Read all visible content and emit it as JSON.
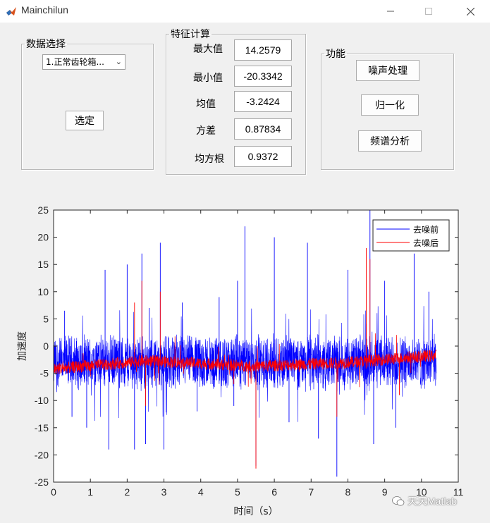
{
  "window": {
    "title": "Mainchilun"
  },
  "data_panel": {
    "legend": "数据选择",
    "select_value": "1.正常齿轮箱...",
    "select_button": "选定"
  },
  "feature_panel": {
    "legend": "特征计算",
    "rows": [
      {
        "label": "最大值",
        "value": "14.2579"
      },
      {
        "label": "最小值",
        "value": "-20.3342"
      },
      {
        "label": "均值",
        "value": "-3.2424"
      },
      {
        "label": "方差",
        "value": "0.87834"
      },
      {
        "label": "均方根",
        "value": "0.9372"
      }
    ]
  },
  "function_panel": {
    "legend": "功能",
    "buttons": [
      "噪声处理",
      "归一化",
      "频谱分析"
    ]
  },
  "chart_data": {
    "type": "line",
    "xlabel": "时间（s）",
    "ylabel": "加速度",
    "xlim": [
      0,
      11
    ],
    "ylim": [
      -25,
      25
    ],
    "xticks": [
      "0",
      "1",
      "2",
      "3",
      "4",
      "5",
      "6",
      "7",
      "8",
      "9",
      "10",
      "11"
    ],
    "yticks": [
      "25",
      "20",
      "15",
      "10",
      "5",
      "0",
      "-5",
      "-10",
      "-15",
      "-20",
      "-25"
    ],
    "legend_position": "top-right",
    "series": [
      {
        "name": "去噪前",
        "color": "#0000ff",
        "x_range": [
          0,
          10.4
        ],
        "baseline_mean": -3.2,
        "band": [
          -8,
          2
        ],
        "spikes": [
          [
            0.3,
            6.5
          ],
          [
            0.5,
            -13
          ],
          [
            0.9,
            -15
          ],
          [
            1.4,
            14
          ],
          [
            1.5,
            -19
          ],
          [
            2.0,
            15
          ],
          [
            2.2,
            -19
          ],
          [
            2.4,
            17
          ],
          [
            2.5,
            -18
          ],
          [
            2.6,
            7
          ],
          [
            2.9,
            19
          ],
          [
            3.0,
            -19
          ],
          [
            3.5,
            8
          ],
          [
            3.9,
            -12
          ],
          [
            4.5,
            9
          ],
          [
            4.9,
            -11
          ],
          [
            5.0,
            12
          ],
          [
            5.2,
            22
          ],
          [
            5.5,
            -22
          ],
          [
            6.0,
            20
          ],
          [
            6.4,
            -14
          ],
          [
            6.9,
            19
          ],
          [
            7.2,
            -17
          ],
          [
            7.7,
            -24
          ],
          [
            8.0,
            14
          ],
          [
            8.6,
            25
          ],
          [
            8.7,
            -18
          ],
          [
            9.0,
            12
          ],
          [
            9.3,
            -15
          ],
          [
            9.8,
            17
          ],
          [
            10.2,
            10
          ]
        ]
      },
      {
        "name": "去噪后",
        "color": "#ff0000",
        "x_range": [
          0,
          10.4
        ],
        "trend": [
          [
            0,
            -4.2
          ],
          [
            2.5,
            -2.7
          ],
          [
            5.5,
            -3.7
          ],
          [
            8.0,
            -3.0
          ],
          [
            10.4,
            -1.7
          ]
        ],
        "spikes": [
          [
            2.2,
            8
          ],
          [
            2.4,
            12
          ],
          [
            2.5,
            -11
          ],
          [
            2.9,
            10
          ],
          [
            4.9,
            -7
          ],
          [
            5.5,
            -22.5
          ],
          [
            7.7,
            -13
          ],
          [
            8.5,
            18
          ],
          [
            8.6,
            16
          ],
          [
            9.4,
            -9
          ]
        ]
      }
    ]
  },
  "watermark": {
    "text": "天天Matlab"
  }
}
